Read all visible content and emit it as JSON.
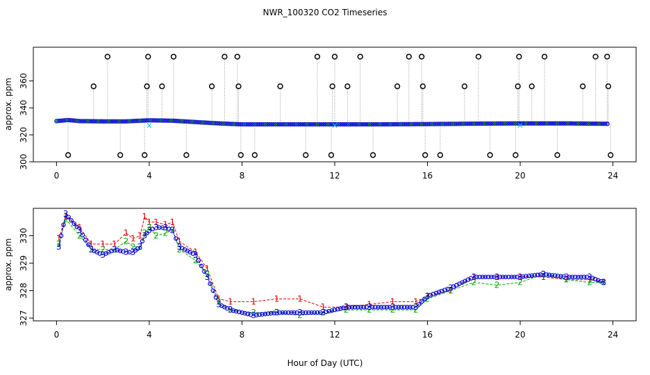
{
  "chart_data": [
    {
      "type": "scatter",
      "title": "NWR_100320  CO2 Timeseries",
      "ylabel": "approx. ppm",
      "xlabel": "",
      "xlim": [
        -1,
        25
      ],
      "ylim": [
        300,
        385
      ],
      "x_ticks": [
        "0",
        "4",
        "8",
        "12",
        "16",
        "20",
        "24"
      ],
      "y_ticks": [
        "300",
        "320",
        "340",
        "360"
      ],
      "baseline_series": [
        {
          "hour": 0.0,
          "ppm": 330.2
        },
        {
          "hour": 0.5,
          "ppm": 331.0
        },
        {
          "hour": 1.0,
          "ppm": 330.2
        },
        {
          "hour": 2.0,
          "ppm": 330.0
        },
        {
          "hour": 3.0,
          "ppm": 330.0
        },
        {
          "hour": 4.0,
          "ppm": 330.8
        },
        {
          "hour": 5.0,
          "ppm": 330.5
        },
        {
          "hour": 6.0,
          "ppm": 329.5
        },
        {
          "hour": 7.0,
          "ppm": 328.5
        },
        {
          "hour": 8.0,
          "ppm": 327.8
        },
        {
          "hour": 10.0,
          "ppm": 327.8
        },
        {
          "hour": 12.0,
          "ppm": 327.8
        },
        {
          "hour": 14.0,
          "ppm": 327.8
        },
        {
          "hour": 16.0,
          "ppm": 328.0
        },
        {
          "hour": 18.0,
          "ppm": 328.3
        },
        {
          "hour": 20.0,
          "ppm": 328.5
        },
        {
          "hour": 22.0,
          "ppm": 328.5
        },
        {
          "hour": 23.8,
          "ppm": 328.2
        }
      ],
      "spikes": [
        {
          "hour": 0.5,
          "ppm": 305
        },
        {
          "hour": 1.6,
          "ppm": 356
        },
        {
          "hour": 2.2,
          "ppm": 378
        },
        {
          "hour": 2.75,
          "ppm": 305
        },
        {
          "hour": 3.8,
          "ppm": 305
        },
        {
          "hour": 3.9,
          "ppm": 356
        },
        {
          "hour": 3.95,
          "ppm": 378
        },
        {
          "hour": 4.55,
          "ppm": 356
        },
        {
          "hour": 5.05,
          "ppm": 378
        },
        {
          "hour": 5.6,
          "ppm": 305
        },
        {
          "hour": 6.7,
          "ppm": 356
        },
        {
          "hour": 7.25,
          "ppm": 378
        },
        {
          "hour": 7.8,
          "ppm": 378
        },
        {
          "hour": 7.85,
          "ppm": 356
        },
        {
          "hour": 7.95,
          "ppm": 305
        },
        {
          "hour": 8.55,
          "ppm": 305
        },
        {
          "hour": 9.65,
          "ppm": 356
        },
        {
          "hour": 10.75,
          "ppm": 305
        },
        {
          "hour": 11.25,
          "ppm": 378
        },
        {
          "hour": 11.85,
          "ppm": 305
        },
        {
          "hour": 11.9,
          "ppm": 356
        },
        {
          "hour": 12.0,
          "ppm": 378
        },
        {
          "hour": 12.55,
          "ppm": 356
        },
        {
          "hour": 13.1,
          "ppm": 378
        },
        {
          "hour": 13.65,
          "ppm": 305
        },
        {
          "hour": 14.7,
          "ppm": 356
        },
        {
          "hour": 15.2,
          "ppm": 378
        },
        {
          "hour": 15.75,
          "ppm": 378
        },
        {
          "hour": 15.8,
          "ppm": 356
        },
        {
          "hour": 15.9,
          "ppm": 305
        },
        {
          "hour": 16.55,
          "ppm": 305
        },
        {
          "hour": 17.6,
          "ppm": 356
        },
        {
          "hour": 18.2,
          "ppm": 378
        },
        {
          "hour": 18.7,
          "ppm": 305
        },
        {
          "hour": 19.8,
          "ppm": 305
        },
        {
          "hour": 19.9,
          "ppm": 356
        },
        {
          "hour": 19.95,
          "ppm": 378
        },
        {
          "hour": 20.5,
          "ppm": 356
        },
        {
          "hour": 21.05,
          "ppm": 378
        },
        {
          "hour": 21.6,
          "ppm": 305
        },
        {
          "hour": 22.7,
          "ppm": 356
        },
        {
          "hour": 23.25,
          "ppm": 378
        },
        {
          "hour": 23.75,
          "ppm": 378
        },
        {
          "hour": 23.8,
          "ppm": 356
        },
        {
          "hour": 23.9,
          "ppm": 305
        }
      ],
      "cyan_marks": [
        {
          "hour": 4.0,
          "ppm": 327
        },
        {
          "hour": 12.0,
          "ppm": 327
        },
        {
          "hour": 20.0,
          "ppm": 327
        }
      ]
    },
    {
      "type": "scatter",
      "title": "",
      "xlabel": "Hour of Day (UTC)",
      "ylabel": "approx. ppm",
      "xlim": [
        -1,
        25
      ],
      "ylim": [
        326.9,
        331.0
      ],
      "x_ticks": [
        "0",
        "4",
        "8",
        "12",
        "16",
        "20",
        "24"
      ],
      "y_ticks": [
        "327",
        "328",
        "329",
        "330"
      ],
      "series": [
        {
          "name": "1",
          "values": [
            {
              "hour": 0.1,
              "ppm": 329.9
            },
            {
              "hour": 0.4,
              "ppm": 330.7
            },
            {
              "hour": 1.0,
              "ppm": 330.3
            },
            {
              "hour": 1.5,
              "ppm": 329.7
            },
            {
              "hour": 2.0,
              "ppm": 329.7
            },
            {
              "hour": 2.5,
              "ppm": 329.7
            },
            {
              "hour": 3.0,
              "ppm": 330.1
            },
            {
              "hour": 3.3,
              "ppm": 329.9
            },
            {
              "hour": 3.6,
              "ppm": 330.0
            },
            {
              "hour": 3.8,
              "ppm": 330.7
            },
            {
              "hour": 4.0,
              "ppm": 330.5
            },
            {
              "hour": 4.3,
              "ppm": 330.5
            },
            {
              "hour": 4.7,
              "ppm": 330.4
            },
            {
              "hour": 5.0,
              "ppm": 330.5
            },
            {
              "hour": 5.3,
              "ppm": 329.8
            },
            {
              "hour": 6.0,
              "ppm": 329.4
            },
            {
              "hour": 6.5,
              "ppm": 328.8
            },
            {
              "hour": 7.0,
              "ppm": 327.7
            },
            {
              "hour": 7.5,
              "ppm": 327.6
            },
            {
              "hour": 8.5,
              "ppm": 327.6
            },
            {
              "hour": 9.5,
              "ppm": 327.7
            },
            {
              "hour": 10.5,
              "ppm": 327.7
            },
            {
              "hour": 11.5,
              "ppm": 327.4
            },
            {
              "hour": 12.5,
              "ppm": 327.4
            },
            {
              "hour": 13.5,
              "ppm": 327.5
            },
            {
              "hour": 14.5,
              "ppm": 327.6
            },
            {
              "hour": 15.5,
              "ppm": 327.6
            },
            {
              "hour": 16.0,
              "ppm": 327.8
            },
            {
              "hour": 17.0,
              "ppm": 328.0
            },
            {
              "hour": 18.0,
              "ppm": 328.5
            },
            {
              "hour": 19.0,
              "ppm": 328.5
            },
            {
              "hour": 20.0,
              "ppm": 328.5
            },
            {
              "hour": 21.0,
              "ppm": 328.5
            },
            {
              "hour": 22.0,
              "ppm": 328.4
            },
            {
              "hour": 23.0,
              "ppm": 328.4
            },
            {
              "hour": 23.6,
              "ppm": 328.3
            }
          ]
        },
        {
          "name": "2",
          "values": [
            {
              "hour": 0.1,
              "ppm": 329.7
            },
            {
              "hour": 0.4,
              "ppm": 330.6
            },
            {
              "hour": 1.0,
              "ppm": 330.0
            },
            {
              "hour": 1.5,
              "ppm": 329.5
            },
            {
              "hour": 2.0,
              "ppm": 329.5
            },
            {
              "hour": 2.5,
              "ppm": 329.5
            },
            {
              "hour": 3.0,
              "ppm": 329.8
            },
            {
              "hour": 3.3,
              "ppm": 329.6
            },
            {
              "hour": 3.6,
              "ppm": 329.6
            },
            {
              "hour": 3.8,
              "ppm": 330.1
            },
            {
              "hour": 4.0,
              "ppm": 330.3
            },
            {
              "hour": 4.3,
              "ppm": 330.0
            },
            {
              "hour": 4.7,
              "ppm": 330.1
            },
            {
              "hour": 5.0,
              "ppm": 330.2
            },
            {
              "hour": 5.3,
              "ppm": 329.5
            },
            {
              "hour": 6.0,
              "ppm": 329.1
            },
            {
              "hour": 6.5,
              "ppm": 328.6
            },
            {
              "hour": 7.0,
              "ppm": 327.6
            },
            {
              "hour": 7.5,
              "ppm": 327.3
            },
            {
              "hour": 8.5,
              "ppm": 327.2
            },
            {
              "hour": 9.5,
              "ppm": 327.2
            },
            {
              "hour": 10.5,
              "ppm": 327.1
            },
            {
              "hour": 11.5,
              "ppm": 327.2
            },
            {
              "hour": 12.5,
              "ppm": 327.3
            },
            {
              "hour": 13.5,
              "ppm": 327.3
            },
            {
              "hour": 14.5,
              "ppm": 327.3
            },
            {
              "hour": 15.5,
              "ppm": 327.3
            },
            {
              "hour": 16.0,
              "ppm": 327.7
            },
            {
              "hour": 17.0,
              "ppm": 328.0
            },
            {
              "hour": 18.0,
              "ppm": 328.3
            },
            {
              "hour": 19.0,
              "ppm": 328.2
            },
            {
              "hour": 20.0,
              "ppm": 328.3
            },
            {
              "hour": 21.0,
              "ppm": 328.6
            },
            {
              "hour": 22.0,
              "ppm": 328.4
            },
            {
              "hour": 23.0,
              "ppm": 328.3
            },
            {
              "hour": 23.6,
              "ppm": 328.3
            }
          ]
        },
        {
          "name": "3",
          "values": [
            {
              "hour": 0.1,
              "ppm": 329.6
            },
            {
              "hour": 0.4,
              "ppm": 330.8
            },
            {
              "hour": 1.0,
              "ppm": 330.2
            },
            {
              "hour": 1.5,
              "ppm": 329.5
            },
            {
              "hour": 2.0,
              "ppm": 329.3
            },
            {
              "hour": 2.5,
              "ppm": 329.5
            },
            {
              "hour": 3.0,
              "ppm": 329.4
            },
            {
              "hour": 3.3,
              "ppm": 329.4
            },
            {
              "hour": 3.6,
              "ppm": 329.6
            },
            {
              "hour": 3.8,
              "ppm": 330.0
            },
            {
              "hour": 4.0,
              "ppm": 330.2
            },
            {
              "hour": 4.3,
              "ppm": 330.3
            },
            {
              "hour": 4.7,
              "ppm": 330.3
            },
            {
              "hour": 5.0,
              "ppm": 330.2
            },
            {
              "hour": 5.3,
              "ppm": 329.6
            },
            {
              "hour": 6.0,
              "ppm": 329.3
            },
            {
              "hour": 6.5,
              "ppm": 328.5
            },
            {
              "hour": 7.0,
              "ppm": 327.5
            },
            {
              "hour": 7.5,
              "ppm": 327.3
            },
            {
              "hour": 8.5,
              "ppm": 327.1
            },
            {
              "hour": 9.5,
              "ppm": 327.2
            },
            {
              "hour": 10.5,
              "ppm": 327.2
            },
            {
              "hour": 11.5,
              "ppm": 327.2
            },
            {
              "hour": 12.5,
              "ppm": 327.4
            },
            {
              "hour": 13.5,
              "ppm": 327.4
            },
            {
              "hour": 14.5,
              "ppm": 327.4
            },
            {
              "hour": 15.5,
              "ppm": 327.4
            },
            {
              "hour": 16.0,
              "ppm": 327.8
            },
            {
              "hour": 17.0,
              "ppm": 328.1
            },
            {
              "hour": 18.0,
              "ppm": 328.5
            },
            {
              "hour": 19.0,
              "ppm": 328.5
            },
            {
              "hour": 20.0,
              "ppm": 328.5
            },
            {
              "hour": 21.0,
              "ppm": 328.6
            },
            {
              "hour": 22.0,
              "ppm": 328.5
            },
            {
              "hour": 23.0,
              "ppm": 328.5
            },
            {
              "hour": 23.6,
              "ppm": 328.3
            }
          ]
        }
      ],
      "series_colors": {
        "1": "#e00000",
        "2": "#00aa00",
        "3": "#0000cc"
      }
    }
  ]
}
